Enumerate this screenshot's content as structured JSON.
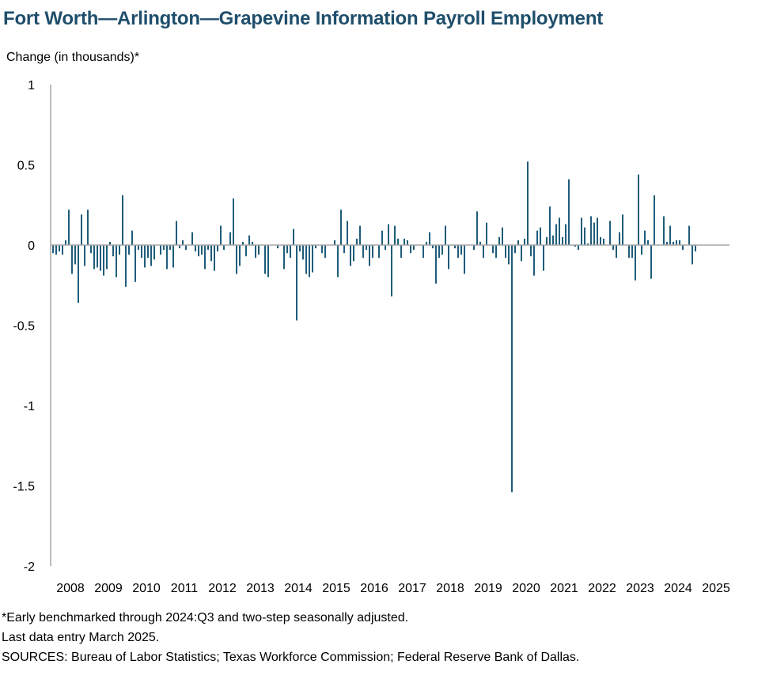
{
  "title": "Fort Worth—Arlington—Grapevine Information Payroll Employment",
  "ylabel": "Change (in thousands)*",
  "notes": [
    "*Early benchmarked through 2024:Q3 and two-step seasonally adjusted.",
    "Last data entry March 2025.",
    "SOURCES: Bureau of Labor Statistics; Texas Workforce Commission; Federal Reserve Bank of Dallas."
  ],
  "colors": {
    "bar": "#1f5c7a",
    "axis": "#a6a6a6",
    "title": "#1f4e6b"
  },
  "chart_data": {
    "type": "bar",
    "start": "2008-01",
    "frequency": "monthly",
    "ylim": [
      -2,
      1
    ],
    "yticks": [
      1,
      0.5,
      0,
      -0.5,
      -1,
      -1.5,
      -2
    ],
    "ytick_labels": [
      "1",
      "0.5",
      "0",
      "-0.5",
      "-1",
      "-1.5",
      "-2"
    ],
    "xtick_labels": [
      "2008",
      "2009",
      "2010",
      "2011",
      "2012",
      "2013",
      "2014",
      "2015",
      "2016",
      "2017",
      "2018",
      "2019",
      "2020",
      "2021",
      "2022",
      "2023",
      "2024",
      "2025"
    ],
    "grid": false,
    "legend": "none",
    "values": [
      -0.05,
      -0.06,
      -0.04,
      -0.06,
      0.03,
      0.22,
      -0.18,
      -0.12,
      -0.36,
      0.19,
      -0.13,
      0.22,
      -0.05,
      -0.15,
      -0.14,
      -0.16,
      -0.19,
      -0.15,
      0.02,
      -0.07,
      -0.2,
      -0.06,
      0.31,
      -0.26,
      -0.06,
      0.09,
      -0.23,
      -0.03,
      -0.08,
      -0.14,
      -0.08,
      -0.13,
      -0.09,
      0.0,
      -0.06,
      -0.03,
      -0.15,
      -0.03,
      -0.14,
      0.15,
      -0.02,
      0.03,
      -0.03,
      0.0,
      0.08,
      -0.04,
      -0.07,
      -0.06,
      -0.15,
      -0.03,
      -0.1,
      -0.16,
      -0.04,
      0.12,
      -0.03,
      0.0,
      0.08,
      0.29,
      -0.18,
      -0.13,
      0.02,
      -0.07,
      0.06,
      0.02,
      -0.08,
      -0.06,
      0.0,
      -0.18,
      -0.2,
      0.0,
      0.0,
      -0.02,
      0.0,
      -0.15,
      -0.05,
      -0.08,
      0.1,
      -0.47,
      -0.04,
      -0.09,
      -0.18,
      -0.2,
      -0.17,
      -0.02,
      0.0,
      -0.05,
      -0.08,
      0.0,
      0.0,
      0.03,
      -0.2,
      0.22,
      -0.05,
      0.15,
      -0.13,
      -0.1,
      0.04,
      0.12,
      -0.08,
      -0.03,
      -0.13,
      -0.08,
      0.0,
      -0.08,
      0.09,
      -0.03,
      0.13,
      -0.32,
      0.12,
      0.04,
      -0.08,
      0.04,
      0.03,
      -0.05,
      -0.03,
      0.0,
      0.0,
      -0.08,
      0.02,
      0.08,
      -0.02,
      -0.24,
      -0.08,
      -0.06,
      0.12,
      -0.15,
      0.0,
      -0.02,
      -0.08,
      -0.06,
      -0.18,
      0.0,
      0.0,
      -0.03,
      0.21,
      0.02,
      -0.08,
      0.14,
      0.0,
      -0.05,
      -0.08,
      0.05,
      0.11,
      -0.08,
      -0.12,
      -1.54,
      -0.05,
      0.03,
      -0.1,
      0.04,
      0.52,
      -0.07,
      -0.19,
      0.09,
      0.11,
      -0.16,
      0.05,
      0.24,
      0.06,
      0.13,
      0.17,
      0.05,
      0.13,
      0.41,
      0.0,
      -0.01,
      -0.03,
      0.17,
      0.11,
      0.01,
      0.18,
      0.14,
      0.17,
      0.05,
      0.04,
      0.0,
      0.15,
      -0.03,
      -0.08,
      0.08,
      0.19,
      0.0,
      -0.08,
      -0.08,
      -0.22,
      0.44,
      -0.06,
      0.09,
      0.03,
      -0.21,
      0.31,
      0.0,
      0.0,
      0.18,
      0.02,
      0.12,
      0.02,
      0.03,
      0.03,
      -0.03,
      0.0,
      0.12,
      -0.12,
      -0.04,
      0.0
    ]
  }
}
